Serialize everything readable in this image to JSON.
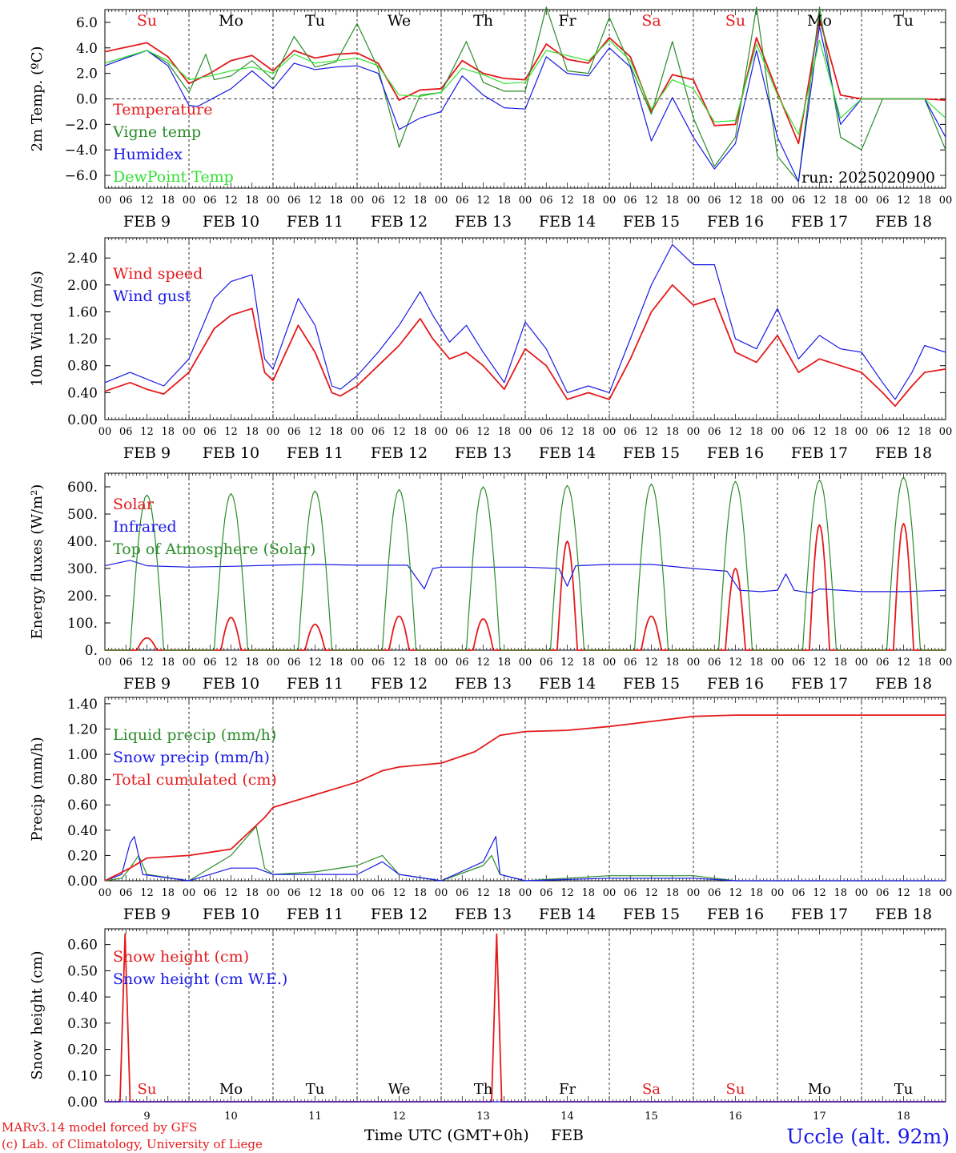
{
  "colors": {
    "red": "#e41a1c",
    "green": "#2a8c2a",
    "blue": "#1a1ae6",
    "lightgreen": "#33e033",
    "black": "#000000"
  },
  "day_labels": [
    "Su",
    "Mo",
    "Tu",
    "We",
    "Th",
    "Fr",
    "Sa",
    "Su",
    "Mo",
    "Tu"
  ],
  "day_label_colors": [
    "red",
    "black",
    "black",
    "black",
    "black",
    "black",
    "red",
    "red",
    "black",
    "black"
  ],
  "date_labels": [
    "FEB  9",
    "FEB 10",
    "FEB 11",
    "FEB 12",
    "FEB 13",
    "FEB 14",
    "FEB 15",
    "FEB 16",
    "FEB 17",
    "FEB 18"
  ],
  "hour_labels": [
    "00",
    "06",
    "12",
    "18"
  ],
  "bottom_day_numbers": [
    "9",
    "10",
    "11",
    "12",
    "13",
    "14",
    "15",
    "16",
    "17",
    "18"
  ],
  "bottom_day_names": [
    "Su",
    "Mo",
    "Tu",
    "We",
    "Th",
    "Fr",
    "Sa",
    "Su",
    "Mo",
    "Tu"
  ],
  "bottom_day_name_colors": [
    "red",
    "black",
    "black",
    "black",
    "black",
    "black",
    "red",
    "red",
    "black",
    "black"
  ],
  "run_label": "run: 2025020900",
  "footer": {
    "model": "MARv3.14 model forced by GFS",
    "lab": "(c) Lab. of Climatology, University of Liege",
    "xlabel": "Time UTC (GMT+0h)",
    "month": "FEB",
    "station": "Uccle (alt. 92m)"
  },
  "chart_data": [
    {
      "type": "line",
      "ylabel": "2m Temp. (ºC)",
      "ylim": [
        -7,
        7
      ],
      "yticks": [
        "6.0",
        "4.0",
        "2.0",
        "0.0",
        "−2.0",
        "−4.0",
        "−6.0"
      ],
      "ytick_values": [
        6,
        4,
        2,
        0,
        -2,
        -4,
        -6
      ],
      "zero_line": true,
      "x_days": [
        0,
        10
      ],
      "series": [
        {
          "name": "Temperature",
          "color": "red",
          "x": [
            0,
            0.5,
            0.75,
            1,
            1.25,
            1.5,
            1.75,
            2,
            2.25,
            2.5,
            2.75,
            3,
            3.25,
            3.5,
            3.75,
            4,
            4.25,
            4.5,
            4.75,
            5,
            5.25,
            5.5,
            5.75,
            6,
            6.25,
            6.5,
            6.75,
            7,
            7.25,
            7.5,
            7.75,
            8,
            8.25,
            8.5,
            8.75,
            9,
            9.25,
            9.5,
            9.75,
            10
          ],
          "y": [
            3.7,
            4.4,
            3.3,
            1.2,
            2.0,
            3.0,
            3.4,
            2.2,
            3.8,
            3.2,
            3.5,
            3.6,
            2.8,
            -0.1,
            0.7,
            0.8,
            3.0,
            2.0,
            1.6,
            1.5,
            4.3,
            3.1,
            2.8,
            4.8,
            3.3,
            -1.0,
            1.9,
            1.5,
            -2.1,
            -2.0,
            4.8,
            0.5,
            -3.5,
            6.3,
            0.3,
            0,
            0,
            0,
            0,
            -0.1
          ]
        },
        {
          "name": "Vigne temp",
          "color": "green",
          "x": [
            0,
            0.5,
            0.75,
            1,
            1.2,
            1.3,
            1.5,
            1.75,
            2,
            2.25,
            2.5,
            2.75,
            3,
            3.25,
            3.5,
            3.6,
            3.75,
            4,
            4.3,
            4.5,
            4.75,
            5,
            5.25,
            5.5,
            5.75,
            6,
            6.25,
            6.5,
            6.75,
            7,
            7.25,
            7.5,
            7.75,
            8,
            8.25,
            8.5,
            8.75,
            9,
            9.25,
            9.5,
            9.75,
            10
          ],
          "y": [
            2.8,
            3.8,
            2.8,
            0.5,
            3.5,
            1.5,
            1.8,
            3.0,
            1.5,
            4.9,
            2.5,
            2.9,
            5.9,
            2.4,
            -3.8,
            -2.0,
            0.3,
            0.5,
            4.5,
            1.3,
            0.6,
            0.6,
            7.2,
            2.2,
            2.0,
            6.4,
            2.6,
            -1.2,
            4.5,
            -1.5,
            -5.3,
            -3.0,
            7.2,
            -4.5,
            -6.5,
            7.2,
            -3.0,
            -4.0,
            0,
            0,
            0,
            -4
          ]
        },
        {
          "name": "Humidex",
          "color": "blue",
          "x": [
            0,
            0.5,
            0.75,
            1,
            1.1,
            1.5,
            1.75,
            2,
            2.25,
            2.5,
            2.75,
            3,
            3.25,
            3.5,
            3.75,
            4,
            4.25,
            4.5,
            4.75,
            5,
            5.25,
            5.5,
            5.75,
            6,
            6.25,
            6.5,
            6.75,
            7,
            7.25,
            7.5,
            7.75,
            8,
            8.25,
            8.5,
            8.75,
            9,
            9.25,
            9.5,
            9.75,
            10
          ],
          "y": [
            2.6,
            3.8,
            2.6,
            -0.5,
            -0.6,
            0.8,
            2.2,
            0.8,
            2.8,
            2.3,
            2.5,
            2.6,
            2.0,
            -2.4,
            -1.5,
            -1.0,
            1.8,
            0.3,
            -0.7,
            -0.8,
            3.3,
            2.0,
            1.8,
            4.0,
            2.5,
            -3.3,
            0.1,
            -3.0,
            -5.5,
            -3.5,
            3.8,
            -3.0,
            -6.5,
            5.7,
            -2.0,
            0,
            0,
            0,
            0,
            -3
          ]
        },
        {
          "name": "DewPoint Temp",
          "color": "lightgreen",
          "x": [
            0,
            0.5,
            0.75,
            1,
            1.25,
            1.5,
            1.75,
            2,
            2.25,
            2.5,
            2.75,
            3,
            3.25,
            3.5,
            3.75,
            4,
            4.25,
            4.5,
            4.75,
            5,
            5.25,
            5.5,
            5.75,
            6,
            6.25,
            6.5,
            6.75,
            7,
            7.25,
            7.5,
            7.75,
            8,
            8.25,
            8.5,
            8.75,
            9,
            9.25,
            9.5,
            9.75,
            10
          ],
          "y": [
            2.8,
            3.8,
            3.0,
            1.5,
            1.8,
            2.2,
            2.5,
            2.0,
            3.5,
            2.8,
            3.0,
            3.2,
            2.6,
            0.3,
            0.2,
            0.5,
            2.4,
            1.9,
            1.2,
            1.3,
            3.8,
            3.4,
            3.0,
            4.6,
            3.0,
            -0.8,
            1.5,
            0.8,
            -1.8,
            -1.7,
            4.3,
            0.3,
            -2.8,
            4.6,
            -1.5,
            0,
            0,
            0,
            0,
            -1.5
          ]
        }
      ]
    },
    {
      "type": "line",
      "ylabel": "10m Wind (m/s)",
      "ylim": [
        0,
        2.7
      ],
      "yticks": [
        "2.40",
        "2.00",
        "1.60",
        "1.20",
        "0.80",
        "0.40",
        "0.00"
      ],
      "ytick_values": [
        2.4,
        2.0,
        1.6,
        1.2,
        0.8,
        0.4,
        0.0
      ],
      "x_days": [
        0,
        10
      ],
      "series": [
        {
          "name": "Wind speed",
          "color": "red",
          "x": [
            0,
            0.3,
            0.5,
            0.7,
            1,
            1.3,
            1.5,
            1.75,
            1.9,
            2.0,
            2.3,
            2.5,
            2.7,
            2.8,
            3.0,
            3.25,
            3.5,
            3.75,
            3.9,
            4.1,
            4.3,
            4.5,
            4.75,
            5.0,
            5.25,
            5.5,
            5.75,
            6.0,
            6.25,
            6.5,
            6.75,
            7.0,
            7.25,
            7.5,
            7.75,
            8.0,
            8.25,
            8.5,
            8.75,
            9.0,
            9.25,
            9.4,
            9.6,
            9.75,
            10
          ],
          "y": [
            0.42,
            0.55,
            0.45,
            0.38,
            0.7,
            1.35,
            1.55,
            1.65,
            0.7,
            0.58,
            1.4,
            1.0,
            0.4,
            0.35,
            0.5,
            0.8,
            1.1,
            1.5,
            1.2,
            0.9,
            1.0,
            0.8,
            0.45,
            1.05,
            0.8,
            0.3,
            0.4,
            0.3,
            0.9,
            1.6,
            2.0,
            1.7,
            1.8,
            1.0,
            0.85,
            1.25,
            0.7,
            0.9,
            0.8,
            0.7,
            0.4,
            0.2,
            0.5,
            0.7,
            0.75
          ]
        },
        {
          "name": "Wind gust",
          "color": "blue",
          "x": [
            0,
            0.3,
            0.5,
            0.7,
            1,
            1.3,
            1.5,
            1.75,
            1.9,
            2.0,
            2.3,
            2.5,
            2.7,
            2.8,
            3.0,
            3.25,
            3.5,
            3.75,
            3.9,
            4.1,
            4.3,
            4.5,
            4.75,
            5.0,
            5.25,
            5.5,
            5.75,
            6.0,
            6.25,
            6.5,
            6.75,
            7.0,
            7.25,
            7.5,
            7.75,
            8.0,
            8.25,
            8.5,
            8.75,
            9.0,
            9.25,
            9.4,
            9.6,
            9.75,
            10
          ],
          "y": [
            0.55,
            0.7,
            0.6,
            0.5,
            0.9,
            1.8,
            2.05,
            2.15,
            0.9,
            0.75,
            1.8,
            1.4,
            0.5,
            0.45,
            0.65,
            1.0,
            1.4,
            1.9,
            1.55,
            1.15,
            1.4,
            1.0,
            0.55,
            1.45,
            1.05,
            0.4,
            0.5,
            0.4,
            1.2,
            2.0,
            2.6,
            2.3,
            2.3,
            1.2,
            1.05,
            1.65,
            0.9,
            1.25,
            1.05,
            1.0,
            0.55,
            0.3,
            0.7,
            1.1,
            1.0
          ]
        }
      ]
    },
    {
      "type": "line",
      "ylabel": "Energy fluxes (W/m²)",
      "ylim": [
        0,
        650
      ],
      "yticks": [
        "600.",
        "500.",
        "400.",
        "300.",
        "200.",
        "100.",
        "0."
      ],
      "ytick_values": [
        600,
        500,
        400,
        300,
        200,
        100,
        0
      ],
      "x_days": [
        0,
        10
      ],
      "series": [
        {
          "name": "Solar",
          "color": "red",
          "peak_day_fraction": 0.5,
          "daily_peaks": [
            45,
            120,
            95,
            125,
            115,
            400,
            125,
            300,
            460,
            465
          ]
        },
        {
          "name": "Infrared",
          "color": "blue",
          "x": [
            0,
            0.3,
            0.5,
            1,
            1.5,
            2,
            2.5,
            3,
            3.6,
            3.8,
            3.9,
            4.0,
            5.0,
            5.4,
            5.5,
            5.6,
            6.0,
            6.5,
            7.0,
            7.4,
            7.55,
            7.8,
            8.0,
            8.1,
            8.2,
            8.4,
            8.5,
            9.0,
            9.5,
            10
          ],
          "y": [
            310,
            330,
            310,
            305,
            308,
            312,
            315,
            312,
            312,
            225,
            300,
            305,
            305,
            300,
            235,
            310,
            315,
            315,
            300,
            290,
            220,
            215,
            220,
            280,
            220,
            210,
            225,
            215,
            215,
            220
          ]
        },
        {
          "name": "Top of Atmosphere (Solar)",
          "color": "green",
          "peak_day_fraction": 0.5,
          "daily_peaks": [
            570,
            575,
            585,
            590,
            600,
            605,
            610,
            620,
            625,
            635
          ]
        }
      ]
    },
    {
      "type": "line",
      "ylabel": "Precip (mm/h)",
      "ylim": [
        0,
        1.45
      ],
      "yticks": [
        "1.40",
        "1.20",
        "1.00",
        "0.80",
        "0.60",
        "0.40",
        "0.20",
        "0.00"
      ],
      "ytick_values": [
        1.4,
        1.2,
        1.0,
        0.8,
        0.6,
        0.4,
        0.2,
        0.0
      ],
      "x_days": [
        0,
        10
      ],
      "series": [
        {
          "name": "Liquid precip (mm/h)",
          "color": "green",
          "x": [
            0,
            0.2,
            0.3,
            0.4,
            0.5,
            1.0,
            1.5,
            1.8,
            1.9,
            2.0,
            2.5,
            3.0,
            3.3,
            3.5,
            4.0,
            4.5,
            4.6,
            4.7,
            5.0,
            6.0,
            7.0,
            7.5,
            8.0,
            10
          ],
          "y": [
            0,
            0.02,
            0.1,
            0.2,
            0.05,
            0,
            0.2,
            0.43,
            0.1,
            0.05,
            0.07,
            0.12,
            0.2,
            0.05,
            0,
            0.12,
            0.2,
            0.05,
            0,
            0.04,
            0.04,
            0,
            0,
            0
          ]
        },
        {
          "name": "Snow precip (mm/h)",
          "color": "blue",
          "x": [
            0,
            0.2,
            0.3,
            0.35,
            0.45,
            1.0,
            1.5,
            1.8,
            2.0,
            2.5,
            3.0,
            3.3,
            3.5,
            4.0,
            4.5,
            4.65,
            4.7,
            5.0,
            6.0,
            7.0,
            7.5,
            8.0,
            10
          ],
          "y": [
            0,
            0.05,
            0.3,
            0.35,
            0.05,
            0,
            0.1,
            0.1,
            0.05,
            0.05,
            0.05,
            0.15,
            0.05,
            0,
            0.15,
            0.35,
            0.05,
            0,
            0.02,
            0.02,
            0,
            0,
            0
          ]
        },
        {
          "name": "Total cumulated (cm)",
          "color": "red",
          "x": [
            0,
            0.3,
            0.5,
            1.0,
            1.5,
            1.9,
            2.0,
            2.5,
            3.0,
            3.3,
            3.5,
            4.0,
            4.4,
            4.7,
            5.0,
            5.5,
            6.0,
            6.5,
            7.0,
            7.5,
            8.0,
            10
          ],
          "y": [
            0,
            0.1,
            0.18,
            0.2,
            0.25,
            0.5,
            0.58,
            0.68,
            0.78,
            0.87,
            0.9,
            0.93,
            1.02,
            1.15,
            1.18,
            1.19,
            1.22,
            1.26,
            1.3,
            1.31,
            1.31,
            1.31
          ]
        }
      ]
    },
    {
      "type": "line",
      "ylabel": "Snow height (cm)",
      "ylim": [
        0,
        0.66
      ],
      "yticks": [
        "0.60",
        "0.50",
        "0.40",
        "0.30",
        "0.20",
        "0.10",
        "0.00"
      ],
      "ytick_values": [
        0.6,
        0.5,
        0.4,
        0.3,
        0.2,
        0.1,
        0.0
      ],
      "x_days": [
        0,
        10
      ],
      "series": [
        {
          "name": "Snow height (cm)",
          "color": "red",
          "x": [
            0,
            0.18,
            0.24,
            0.3,
            4.6,
            4.66,
            4.72,
            10
          ],
          "y": [
            0,
            0,
            0.64,
            0,
            0,
            0.64,
            0,
            0
          ]
        },
        {
          "name": "Snow height (cm W.E.)",
          "color": "blue",
          "x": [
            0,
            10
          ],
          "y": [
            0,
            0
          ]
        }
      ]
    }
  ]
}
